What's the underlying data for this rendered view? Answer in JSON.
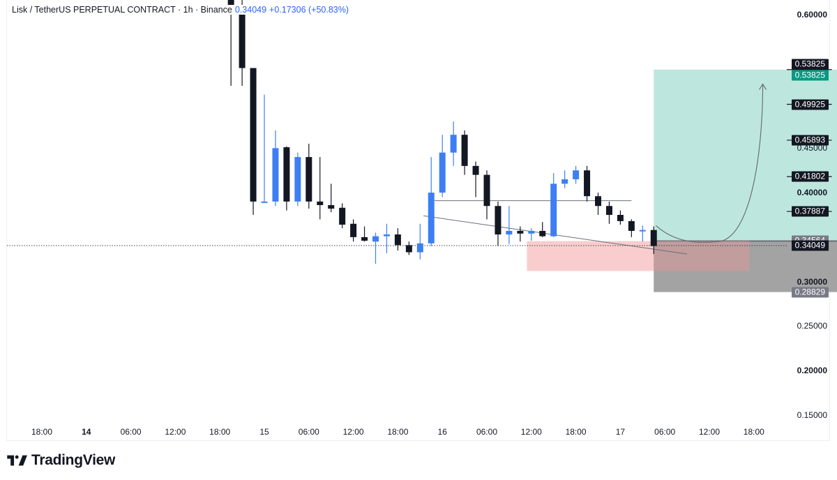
{
  "legend": {
    "symbol": "Lisk / TetherUS PERPETUAL CONTRACT · 1h · Binance",
    "last_price": "0.34049",
    "change": "+0.17306 (+50.83%)"
  },
  "brand": {
    "name": "TradingView",
    "icon": "tradingview-logo-icon"
  },
  "colors": {
    "up": "#3d7ff2",
    "down": "#131722",
    "target_zone": "#b9e6dc",
    "stop_zone": "#9e9e9e",
    "demand_zone": "#f8c8c8",
    "tp_tag": "#131722",
    "entry_tag": "#787b86"
  },
  "chart_data": {
    "type": "candlestick",
    "title": "Lisk / TetherUS PERPETUAL CONTRACT · 1h · Binance",
    "xlabel": "",
    "ylabel": "",
    "ylim": [
      0.1,
      0.64
    ],
    "x_ticks": [
      "18:00",
      "14",
      "06:00",
      "12:00",
      "18:00",
      "15",
      "06:00",
      "12:00",
      "18:00",
      "16",
      "06:00",
      "12:00",
      "18:00",
      "17",
      "06:00",
      "12:00",
      "18:00"
    ],
    "y_ticks": [
      "0.60000",
      "0.45000",
      "0.40000",
      "0.30000",
      "0.25000",
      "0.20000",
      "0.15000"
    ],
    "candles": [
      {
        "t": 20,
        "o": 0.62,
        "h": 0.64,
        "l": 0.52,
        "c": 0.61
      },
      {
        "t": 21,
        "o": 0.61,
        "h": 0.62,
        "l": 0.52,
        "c": 0.54
      },
      {
        "t": 22,
        "o": 0.54,
        "h": 0.54,
        "l": 0.375,
        "c": 0.39
      },
      {
        "t": 23,
        "o": 0.39,
        "h": 0.51,
        "l": 0.39,
        "c": 0.39
      },
      {
        "t": 24,
        "o": 0.39,
        "h": 0.47,
        "l": 0.385,
        "c": 0.45
      },
      {
        "t": 25,
        "o": 0.451,
        "h": 0.452,
        "l": 0.38,
        "c": 0.39
      },
      {
        "t": 26,
        "o": 0.39,
        "h": 0.445,
        "l": 0.385,
        "c": 0.44
      },
      {
        "t": 27,
        "o": 0.44,
        "h": 0.455,
        "l": 0.382,
        "c": 0.39
      },
      {
        "t": 28,
        "o": 0.39,
        "h": 0.44,
        "l": 0.37,
        "c": 0.386
      },
      {
        "t": 29,
        "o": 0.386,
        "h": 0.41,
        "l": 0.378,
        "c": 0.382
      },
      {
        "t": 30,
        "o": 0.383,
        "h": 0.388,
        "l": 0.36,
        "c": 0.364
      },
      {
        "t": 31,
        "o": 0.365,
        "h": 0.37,
        "l": 0.345,
        "c": 0.35
      },
      {
        "t": 32,
        "o": 0.35,
        "h": 0.362,
        "l": 0.345,
        "c": 0.346
      },
      {
        "t": 33,
        "o": 0.345,
        "h": 0.355,
        "l": 0.32,
        "c": 0.351
      },
      {
        "t": 34,
        "o": 0.351,
        "h": 0.365,
        "l": 0.332,
        "c": 0.353
      },
      {
        "t": 35,
        "o": 0.353,
        "h": 0.36,
        "l": 0.335,
        "c": 0.341
      },
      {
        "t": 36,
        "o": 0.341,
        "h": 0.345,
        "l": 0.33,
        "c": 0.333
      },
      {
        "t": 37,
        "o": 0.333,
        "h": 0.365,
        "l": 0.325,
        "c": 0.343
      },
      {
        "t": 38,
        "o": 0.343,
        "h": 0.44,
        "l": 0.34,
        "c": 0.4
      },
      {
        "t": 39,
        "o": 0.4,
        "h": 0.465,
        "l": 0.395,
        "c": 0.445
      },
      {
        "t": 40,
        "o": 0.445,
        "h": 0.48,
        "l": 0.43,
        "c": 0.465
      },
      {
        "t": 41,
        "o": 0.465,
        "h": 0.47,
        "l": 0.42,
        "c": 0.43
      },
      {
        "t": 42,
        "o": 0.43,
        "h": 0.435,
        "l": 0.395,
        "c": 0.42
      },
      {
        "t": 43,
        "o": 0.42,
        "h": 0.425,
        "l": 0.37,
        "c": 0.385
      },
      {
        "t": 44,
        "o": 0.385,
        "h": 0.39,
        "l": 0.34,
        "c": 0.353
      },
      {
        "t": 45,
        "o": 0.353,
        "h": 0.385,
        "l": 0.342,
        "c": 0.357
      },
      {
        "t": 46,
        "o": 0.357,
        "h": 0.362,
        "l": 0.345,
        "c": 0.354
      },
      {
        "t": 47,
        "o": 0.354,
        "h": 0.36,
        "l": 0.346,
        "c": 0.357
      },
      {
        "t": 48,
        "o": 0.357,
        "h": 0.367,
        "l": 0.35,
        "c": 0.351
      },
      {
        "t": 49,
        "o": 0.351,
        "h": 0.422,
        "l": 0.35,
        "c": 0.41
      },
      {
        "t": 50,
        "o": 0.41,
        "h": 0.425,
        "l": 0.405,
        "c": 0.415
      },
      {
        "t": 51,
        "o": 0.415,
        "h": 0.43,
        "l": 0.41,
        "c": 0.425
      },
      {
        "t": 52,
        "o": 0.425,
        "h": 0.43,
        "l": 0.39,
        "c": 0.396
      },
      {
        "t": 53,
        "o": 0.396,
        "h": 0.4,
        "l": 0.375,
        "c": 0.385
      },
      {
        "t": 54,
        "o": 0.385,
        "h": 0.39,
        "l": 0.365,
        "c": 0.375
      },
      {
        "t": 55,
        "o": 0.375,
        "h": 0.38,
        "l": 0.364,
        "c": 0.368
      },
      {
        "t": 56,
        "o": 0.368,
        "h": 0.37,
        "l": 0.35,
        "c": 0.357
      },
      {
        "t": 57,
        "o": 0.357,
        "h": 0.363,
        "l": 0.345,
        "c": 0.358
      },
      {
        "t": 58,
        "o": 0.358,
        "h": 0.362,
        "l": 0.331,
        "c": 0.34
      }
    ],
    "x_tick_positions": [
      3,
      7,
      11,
      15,
      19,
      23,
      27,
      31,
      35,
      39,
      43,
      47,
      51,
      55,
      59,
      63,
      67
    ],
    "position": {
      "entry": 0.34564,
      "stop": 0.28829,
      "targets": [
        0.53825,
        0.49925,
        0.45893,
        0.41802,
        0.37887
      ],
      "x_start": 58,
      "x_end": 74.7
    },
    "demand_zone": {
      "top": 0.3455,
      "bottom": 0.312,
      "x_start": 46.6,
      "x_end": 66.6
    },
    "wedge_lines": [
      {
        "from": [
          37.3,
          0.374
        ],
        "to": [
          61,
          0.331
        ]
      },
      {
        "from": [
          38.3,
          0.391
        ],
        "to": [
          56,
          0.391
        ]
      }
    ],
    "projection_arrow": {
      "start": [
        58.2,
        0.363
      ],
      "bottom": [
        63.8,
        0.345
      ],
      "tip": [
        67.8,
        0.522
      ]
    },
    "current_price": 0.34049,
    "price_tags": [
      "0.53825",
      "0.53825",
      "0.49925",
      "0.45893",
      "0.41802",
      "0.37887",
      "0.34564",
      "0.34049",
      "0.28829"
    ]
  }
}
